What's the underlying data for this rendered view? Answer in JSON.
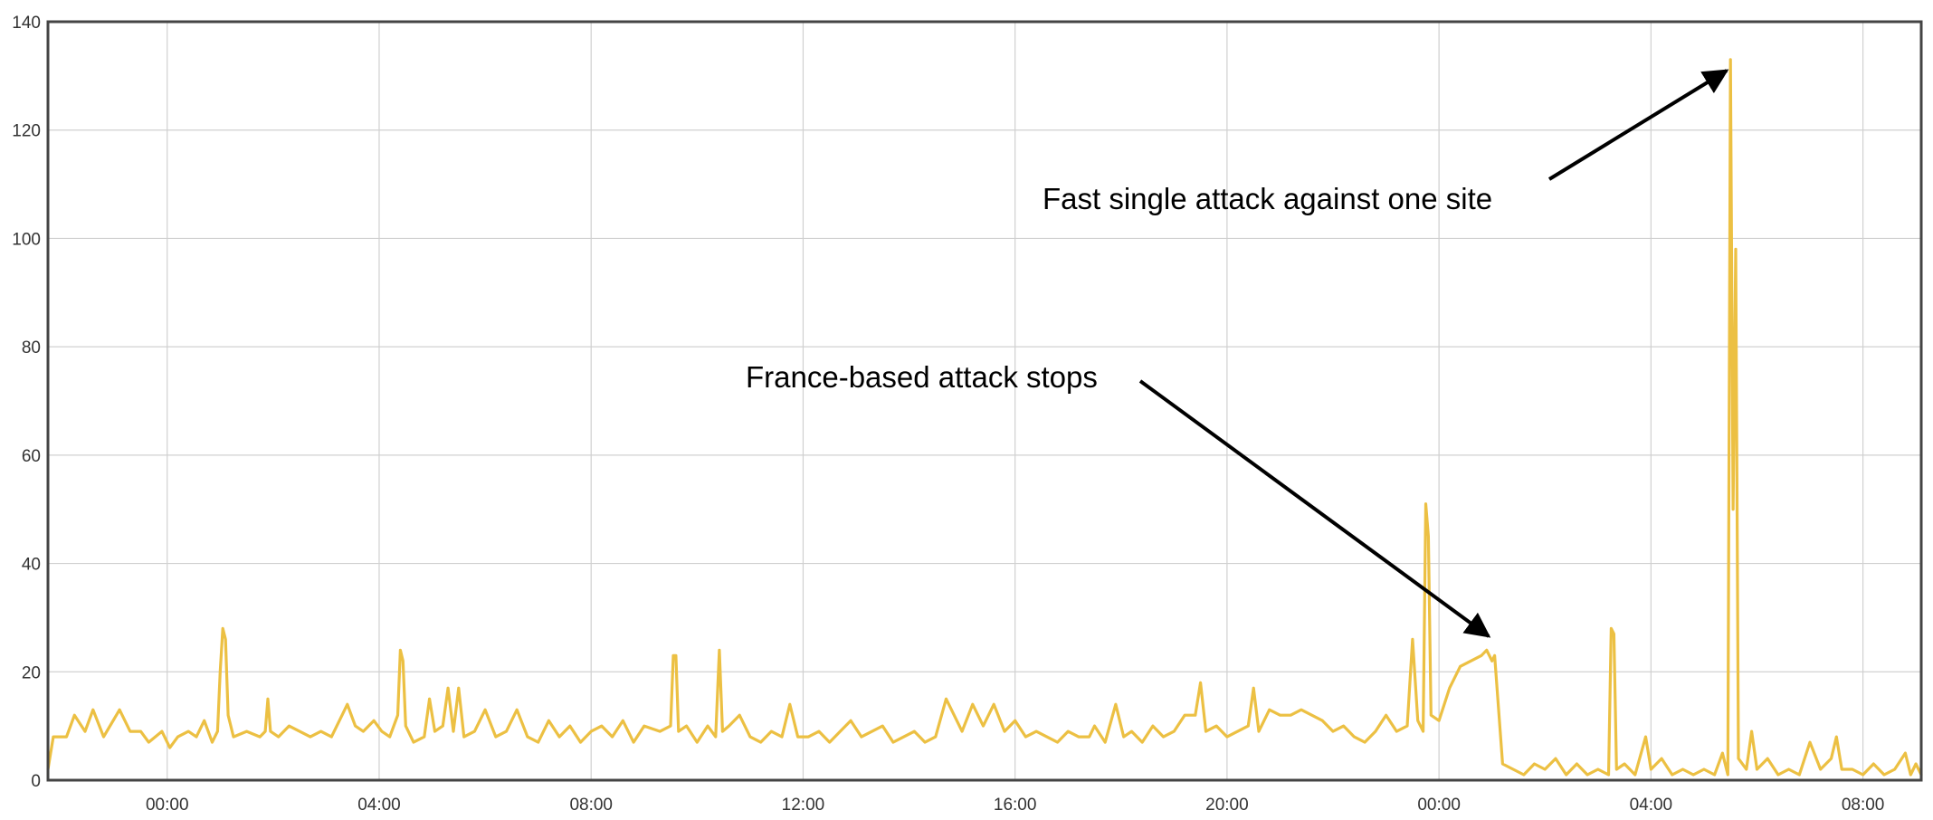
{
  "chart_data": {
    "type": "line",
    "title": "",
    "xlabel": "",
    "ylabel": "",
    "ylim": [
      0,
      140
    ],
    "yticks": [
      "0",
      "20",
      "40",
      "60",
      "80",
      "100",
      "120",
      "140"
    ],
    "x_unit": "hours elapsed",
    "xlim": [
      -2.25,
      33.1
    ],
    "xticks": [
      {
        "at": 0,
        "label": "00:00"
      },
      {
        "at": 4,
        "label": "04:00"
      },
      {
        "at": 8,
        "label": "08:00"
      },
      {
        "at": 12,
        "label": "12:00"
      },
      {
        "at": 16,
        "label": "16:00"
      },
      {
        "at": 20,
        "label": "20:00"
      },
      {
        "at": 24,
        "label": "00:00"
      },
      {
        "at": 28,
        "label": "04:00"
      },
      {
        "at": 32,
        "label": "08:00"
      }
    ],
    "grid": true,
    "legend": "none",
    "series": [
      {
        "color": "#ecc043",
        "points": [
          [
            -2.25,
            2
          ],
          [
            -2.15,
            8
          ],
          [
            -1.9,
            8
          ],
          [
            -1.75,
            12
          ],
          [
            -1.55,
            9
          ],
          [
            -1.4,
            13
          ],
          [
            -1.2,
            8
          ],
          [
            -0.9,
            13
          ],
          [
            -0.7,
            9
          ],
          [
            -0.5,
            9
          ],
          [
            -0.35,
            7
          ],
          [
            -0.1,
            9
          ],
          [
            0.05,
            6
          ],
          [
            0.2,
            8
          ],
          [
            0.4,
            9
          ],
          [
            0.55,
            8
          ],
          [
            0.7,
            11
          ],
          [
            0.85,
            7
          ],
          [
            0.95,
            9
          ],
          [
            1.0,
            20
          ],
          [
            1.05,
            28
          ],
          [
            1.1,
            26
          ],
          [
            1.15,
            12
          ],
          [
            1.25,
            8
          ],
          [
            1.5,
            9
          ],
          [
            1.75,
            8
          ],
          [
            1.85,
            9
          ],
          [
            1.9,
            15
          ],
          [
            1.95,
            9
          ],
          [
            2.1,
            8
          ],
          [
            2.3,
            10
          ],
          [
            2.5,
            9
          ],
          [
            2.7,
            8
          ],
          [
            2.9,
            9
          ],
          [
            3.1,
            8
          ],
          [
            3.3,
            12
          ],
          [
            3.4,
            14
          ],
          [
            3.55,
            10
          ],
          [
            3.7,
            9
          ],
          [
            3.9,
            11
          ],
          [
            4.05,
            9
          ],
          [
            4.2,
            8
          ],
          [
            4.35,
            12
          ],
          [
            4.4,
            24
          ],
          [
            4.45,
            22
          ],
          [
            4.5,
            10
          ],
          [
            4.65,
            7
          ],
          [
            4.85,
            8
          ],
          [
            4.95,
            15
          ],
          [
            5.05,
            9
          ],
          [
            5.2,
            10
          ],
          [
            5.3,
            17
          ],
          [
            5.4,
            9
          ],
          [
            5.5,
            17
          ],
          [
            5.6,
            8
          ],
          [
            5.8,
            9
          ],
          [
            6.0,
            13
          ],
          [
            6.2,
            8
          ],
          [
            6.4,
            9
          ],
          [
            6.6,
            13
          ],
          [
            6.8,
            8
          ],
          [
            7.0,
            7
          ],
          [
            7.2,
            11
          ],
          [
            7.4,
            8
          ],
          [
            7.6,
            10
          ],
          [
            7.8,
            7
          ],
          [
            8.0,
            9
          ],
          [
            8.2,
            10
          ],
          [
            8.4,
            8
          ],
          [
            8.6,
            11
          ],
          [
            8.8,
            7
          ],
          [
            9.0,
            10
          ],
          [
            9.3,
            9
          ],
          [
            9.5,
            10
          ],
          [
            9.55,
            23
          ],
          [
            9.6,
            23
          ],
          [
            9.65,
            9
          ],
          [
            9.8,
            10
          ],
          [
            10.0,
            7
          ],
          [
            10.2,
            10
          ],
          [
            10.35,
            8
          ],
          [
            10.42,
            24
          ],
          [
            10.48,
            9
          ],
          [
            10.6,
            10
          ],
          [
            10.8,
            12
          ],
          [
            11.0,
            8
          ],
          [
            11.2,
            7
          ],
          [
            11.4,
            9
          ],
          [
            11.6,
            8
          ],
          [
            11.75,
            14
          ],
          [
            11.9,
            8
          ],
          [
            12.1,
            8
          ],
          [
            12.3,
            9
          ],
          [
            12.5,
            7
          ],
          [
            12.7,
            9
          ],
          [
            12.9,
            11
          ],
          [
            13.1,
            8
          ],
          [
            13.3,
            9
          ],
          [
            13.5,
            10
          ],
          [
            13.7,
            7
          ],
          [
            13.9,
            8
          ],
          [
            14.1,
            9
          ],
          [
            14.3,
            7
          ],
          [
            14.5,
            8
          ],
          [
            14.7,
            15
          ],
          [
            14.8,
            13
          ],
          [
            15.0,
            9
          ],
          [
            15.2,
            14
          ],
          [
            15.4,
            10
          ],
          [
            15.6,
            14
          ],
          [
            15.8,
            9
          ],
          [
            16.0,
            11
          ],
          [
            16.2,
            8
          ],
          [
            16.4,
            9
          ],
          [
            16.6,
            8
          ],
          [
            16.8,
            7
          ],
          [
            17.0,
            9
          ],
          [
            17.2,
            8
          ],
          [
            17.4,
            8
          ],
          [
            17.5,
            10
          ],
          [
            17.7,
            7
          ],
          [
            17.9,
            14
          ],
          [
            18.05,
            8
          ],
          [
            18.2,
            9
          ],
          [
            18.4,
            7
          ],
          [
            18.6,
            10
          ],
          [
            18.8,
            8
          ],
          [
            19.0,
            9
          ],
          [
            19.2,
            12
          ],
          [
            19.4,
            12
          ],
          [
            19.5,
            18
          ],
          [
            19.6,
            9
          ],
          [
            19.8,
            10
          ],
          [
            20.0,
            8
          ],
          [
            20.2,
            9
          ],
          [
            20.4,
            10
          ],
          [
            20.5,
            17
          ],
          [
            20.6,
            9
          ],
          [
            20.8,
            13
          ],
          [
            21.0,
            12
          ],
          [
            21.2,
            12
          ],
          [
            21.4,
            13
          ],
          [
            21.6,
            12
          ],
          [
            21.8,
            11
          ],
          [
            22.0,
            9
          ],
          [
            22.2,
            10
          ],
          [
            22.4,
            8
          ],
          [
            22.6,
            7
          ],
          [
            22.8,
            9
          ],
          [
            23.0,
            12
          ],
          [
            23.2,
            9
          ],
          [
            23.4,
            10
          ],
          [
            23.5,
            26
          ],
          [
            23.6,
            11
          ],
          [
            23.7,
            9
          ],
          [
            23.75,
            51
          ],
          [
            23.8,
            45
          ],
          [
            23.85,
            12
          ],
          [
            24.0,
            11
          ],
          [
            24.2,
            17
          ],
          [
            24.4,
            21
          ],
          [
            24.6,
            22
          ],
          [
            24.8,
            23
          ],
          [
            24.9,
            24
          ],
          [
            25.0,
            22
          ],
          [
            25.05,
            23
          ],
          [
            25.2,
            3
          ],
          [
            25.4,
            2
          ],
          [
            25.6,
            1
          ],
          [
            25.8,
            3
          ],
          [
            26.0,
            2
          ],
          [
            26.2,
            4
          ],
          [
            26.4,
            1
          ],
          [
            26.6,
            3
          ],
          [
            26.8,
            1
          ],
          [
            27.0,
            2
          ],
          [
            27.2,
            1
          ],
          [
            27.25,
            28
          ],
          [
            27.3,
            27
          ],
          [
            27.35,
            2
          ],
          [
            27.5,
            3
          ],
          [
            27.7,
            1
          ],
          [
            27.9,
            8
          ],
          [
            28.0,
            2
          ],
          [
            28.2,
            4
          ],
          [
            28.4,
            1
          ],
          [
            28.6,
            2
          ],
          [
            28.8,
            1
          ],
          [
            29.0,
            2
          ],
          [
            29.2,
            1
          ],
          [
            29.35,
            5
          ],
          [
            29.45,
            1
          ],
          [
            29.5,
            133
          ],
          [
            29.55,
            50
          ],
          [
            29.6,
            98
          ],
          [
            29.65,
            4
          ],
          [
            29.8,
            2
          ],
          [
            29.9,
            9
          ],
          [
            30.0,
            2
          ],
          [
            30.2,
            4
          ],
          [
            30.4,
            1
          ],
          [
            30.6,
            2
          ],
          [
            30.8,
            1
          ],
          [
            31.0,
            7
          ],
          [
            31.2,
            2
          ],
          [
            31.4,
            4
          ],
          [
            31.5,
            8
          ],
          [
            31.6,
            2
          ],
          [
            31.8,
            2
          ],
          [
            32.0,
            1
          ],
          [
            32.2,
            3
          ],
          [
            32.4,
            1
          ],
          [
            32.6,
            2
          ],
          [
            32.8,
            5
          ],
          [
            32.9,
            1
          ],
          [
            33.0,
            3
          ],
          [
            33.1,
            1
          ]
        ]
      }
    ],
    "annotations": [
      {
        "text": "Fast single attack against one site"
      },
      {
        "text": "France-based attack stops"
      }
    ]
  }
}
